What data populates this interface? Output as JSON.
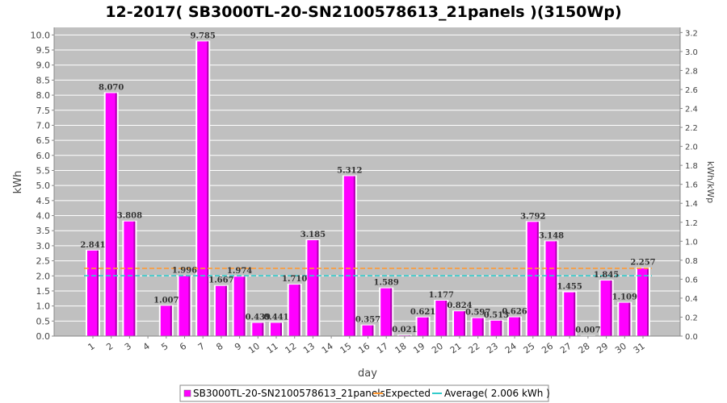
{
  "chart_data": {
    "type": "bar",
    "title": "12-2017( SB3000TL-20-SN2100578613_21panels )(3150Wp)",
    "xlabel": "day",
    "ylabel": "kWh",
    "y2label": "kWh/kWp",
    "ylim": [
      0,
      10.25
    ],
    "y2lim": [
      0,
      3.254
    ],
    "yticks": [
      "0.0",
      "0.5",
      "1.0",
      "1.5",
      "2.0",
      "2.5",
      "3.0",
      "3.5",
      "4.0",
      "4.5",
      "5.0",
      "5.5",
      "6.0",
      "6.5",
      "7.0",
      "7.5",
      "8.0",
      "8.5",
      "9.0",
      "9.5",
      "10.0"
    ],
    "y2ticks": [
      "0.0",
      "0.2",
      "0.4",
      "0.6",
      "0.8",
      "1.0",
      "1.2",
      "1.4",
      "1.6",
      "1.8",
      "2.0",
      "2.2",
      "2.4",
      "2.6",
      "2.8",
      "3.0",
      "3.2"
    ],
    "grid": true,
    "legend_position": "bottom",
    "categories": [
      "1",
      "2",
      "3",
      "4",
      "5",
      "6",
      "7",
      "8",
      "9",
      "10",
      "11",
      "12",
      "13",
      "14",
      "15",
      "16",
      "17",
      "18",
      "19",
      "20",
      "21",
      "22",
      "23",
      "24",
      "25",
      "26",
      "27",
      "28",
      "29",
      "30",
      "31"
    ],
    "series": [
      {
        "name": "SB3000TL-20-SN2100578613_21panels",
        "color": "#ff00ff",
        "values": [
          2.841,
          8.07,
          3.808,
          0,
          1.007,
          1.996,
          9.785,
          1.667,
          1.974,
          0.439,
          0.441,
          1.71,
          3.185,
          0,
          5.312,
          0.357,
          1.589,
          0.021,
          0.621,
          1.177,
          0.824,
          0.597,
          0.513,
          0.626,
          3.792,
          3.148,
          1.455,
          0.007,
          1.845,
          1.109,
          2.257
        ],
        "labels": [
          "2.841",
          "8.070",
          "3.808",
          "",
          "1.007",
          "1.996",
          "9.785",
          "1.667",
          "1.974",
          "0.439",
          "0.441",
          "1.710",
          "3.185",
          "",
          "5.312",
          "0.357",
          "1.589",
          "0.021",
          "0.621",
          "1.177",
          "0.824",
          "0.597",
          "0.513",
          "0.626",
          "3.792",
          "3.148",
          "1.455",
          "0.007",
          "1.845",
          "1.109",
          "2.257"
        ]
      },
      {
        "name": "Expected",
        "color": "#ff9933",
        "type": "line",
        "value": 2.25
      },
      {
        "name": "Average( 2.006 kWh )",
        "color": "#33cccc",
        "type": "line",
        "value": 2.006
      }
    ]
  }
}
